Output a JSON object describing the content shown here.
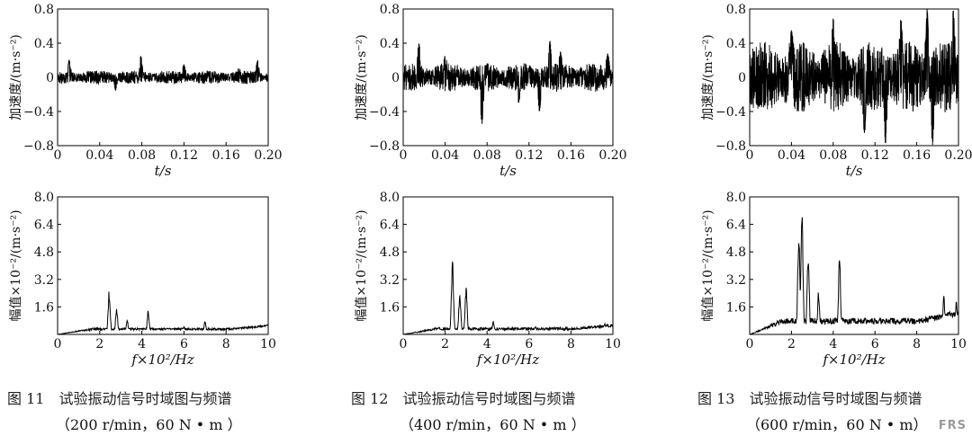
{
  "chart_data": [
    {
      "type": "line",
      "panel": "time-200",
      "ylabel": "加速度/(m·s⁻²)",
      "xlabel": "t/s",
      "xlim": [
        0,
        0.2
      ],
      "ylim": [
        -0.8,
        0.8
      ],
      "xticks": [
        "0",
        "0.04",
        "0.08",
        "0.12",
        "0.16",
        "0.20"
      ],
      "yticks": [
        "0.8",
        "0.4",
        "0",
        "−0.4",
        "−0.8"
      ],
      "series": [
        {
          "amplitude": 0.08,
          "peaks": [
            {
              "t": 0.011,
              "v": 0.2
            },
            {
              "t": 0.055,
              "v": -0.15
            },
            {
              "t": 0.079,
              "v": 0.25
            },
            {
              "t": 0.12,
              "v": 0.15
            },
            {
              "t": 0.172,
              "v": 0.12
            },
            {
              "t": 0.19,
              "v": 0.2
            }
          ]
        }
      ]
    },
    {
      "type": "line",
      "panel": "time-400",
      "ylabel": "加速度/(m·s⁻²)",
      "xlabel": "t/s",
      "xlim": [
        0,
        0.2
      ],
      "ylim": [
        -0.8,
        0.8
      ],
      "xticks": [
        "0",
        "0.04",
        "0.08",
        "0.12",
        "0.16",
        "0.20"
      ],
      "yticks": [
        "0.8",
        "0.4",
        "0",
        "−0.4",
        "−0.8"
      ],
      "series": [
        {
          "amplitude": 0.17,
          "peaks": [
            {
              "t": 0.015,
              "v": 0.4
            },
            {
              "t": 0.04,
              "v": 0.25
            },
            {
              "t": 0.075,
              "v": -0.55
            },
            {
              "t": 0.11,
              "v": -0.3
            },
            {
              "t": 0.13,
              "v": -0.4
            },
            {
              "t": 0.14,
              "v": 0.42
            },
            {
              "t": 0.15,
              "v": 0.3
            },
            {
              "t": 0.195,
              "v": 0.28
            }
          ]
        }
      ]
    },
    {
      "type": "line",
      "panel": "time-600",
      "ylabel": "加速度/(m·s⁻²)",
      "xlabel": "t/s",
      "xlim": [
        0,
        0.2
      ],
      "ylim": [
        -0.8,
        0.8
      ],
      "xticks": [
        "0",
        "0.04",
        "0.08",
        "0.12",
        "0.16",
        "0.20"
      ],
      "yticks": [
        "0.8",
        "0.4",
        "0",
        "−0.4",
        "−0.8"
      ],
      "series": [
        {
          "amplitude": 0.42,
          "peaks": [
            {
              "t": 0.04,
              "v": 0.55
            },
            {
              "t": 0.08,
              "v": 0.68
            },
            {
              "t": 0.11,
              "v": -0.65
            },
            {
              "t": 0.13,
              "v": -0.78
            },
            {
              "t": 0.145,
              "v": 0.7
            },
            {
              "t": 0.17,
              "v": 0.8
            },
            {
              "t": 0.175,
              "v": -0.8
            },
            {
              "t": 0.195,
              "v": 0.78
            }
          ]
        }
      ]
    },
    {
      "type": "line",
      "panel": "freq-200",
      "ylabel": "幅值×10⁻²/(m·s⁻²)",
      "xlabel": "f×10²/Hz",
      "xlim": [
        0,
        10
      ],
      "ylim": [
        0,
        8.0
      ],
      "xticks": [
        "0",
        "2",
        "4",
        "6",
        "8",
        "10"
      ],
      "yticks": [
        "8.0",
        "6.4",
        "4.8",
        "3.2",
        "1.6"
      ],
      "series": [
        {
          "baseline": 0.25,
          "noise": 0.12,
          "peaks": [
            {
              "f": 2.45,
              "v": 2.7
            },
            {
              "f": 2.8,
              "v": 1.6
            },
            {
              "f": 3.3,
              "v": 0.9
            },
            {
              "f": 4.3,
              "v": 1.4
            },
            {
              "f": 6.0,
              "v": 0.5
            },
            {
              "f": 7.0,
              "v": 0.8
            }
          ]
        }
      ]
    },
    {
      "type": "line",
      "panel": "freq-400",
      "ylabel": "幅值×10⁻²/(m·s⁻²)",
      "xlabel": "f×10²/Hz",
      "xlim": [
        0,
        10
      ],
      "ylim": [
        0,
        8.0
      ],
      "xticks": [
        "0",
        "2",
        "4",
        "6",
        "8",
        "10"
      ],
      "yticks": [
        "8.0",
        "6.4",
        "4.8",
        "3.2",
        "1.6"
      ],
      "series": [
        {
          "baseline": 0.25,
          "noise": 0.15,
          "peaks": [
            {
              "f": 2.35,
              "v": 4.7
            },
            {
              "f": 2.7,
              "v": 2.6
            },
            {
              "f": 3.0,
              "v": 2.8
            },
            {
              "f": 4.3,
              "v": 0.8
            },
            {
              "f": 6.3,
              "v": 0.5
            },
            {
              "f": 9.6,
              "v": 0.7
            }
          ]
        }
      ]
    },
    {
      "type": "line",
      "panel": "freq-600",
      "ylabel": "幅值×10⁻²/(m·s⁻²)",
      "xlabel": "f×10²/Hz",
      "xlim": [
        0,
        10
      ],
      "ylim": [
        0,
        8.0
      ],
      "xticks": [
        "0",
        "2",
        "4",
        "6",
        "8",
        "10"
      ],
      "yticks": [
        "8.0",
        "6.4",
        "4.8",
        "3.2",
        "1.6"
      ],
      "series": [
        {
          "baseline": 0.6,
          "noise": 0.35,
          "peaks": [
            {
              "f": 2.35,
              "v": 6.4
            },
            {
              "f": 2.5,
              "v": 8.0
            },
            {
              "f": 2.8,
              "v": 5.2
            },
            {
              "f": 3.3,
              "v": 2.6
            },
            {
              "f": 4.3,
              "v": 4.7
            },
            {
              "f": 9.3,
              "v": 2.3
            },
            {
              "f": 9.9,
              "v": 2.0
            }
          ]
        }
      ]
    }
  ],
  "captions": [
    {
      "line1": "图 11　试验振动信号时域图与频谱",
      "line2": "（200 r/min，60 N • m ）"
    },
    {
      "line1": "图 12　试验振动信号时域图与频谱",
      "line2": "（400 r/min，60 N • m ）"
    },
    {
      "line1": "图 13　试验振动信号时域图与频谱",
      "line2": "（600 r/min，60 N • m）"
    }
  ],
  "watermark": "FRS"
}
